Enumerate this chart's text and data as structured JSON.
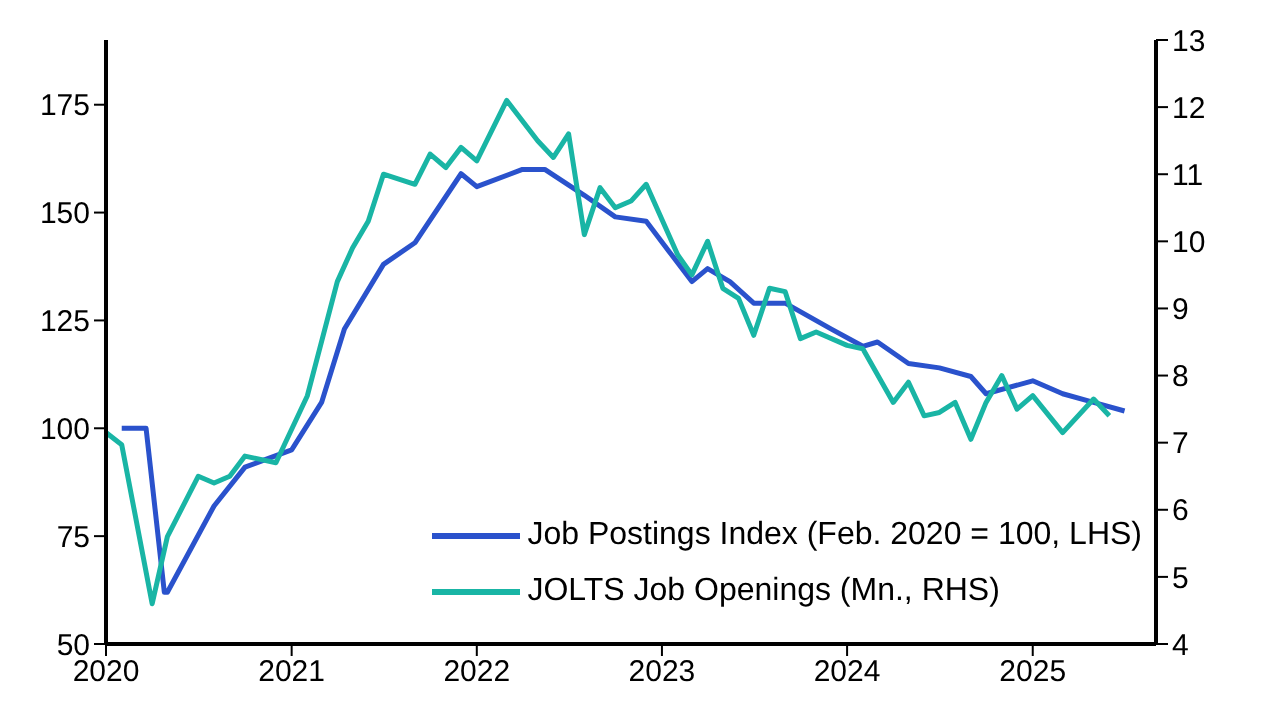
{
  "chart_data": {
    "type": "line",
    "xlim": [
      "2020-01",
      "2025-09"
    ],
    "xticks": [
      "2020",
      "2021",
      "2022",
      "2023",
      "2024",
      "2025"
    ],
    "ylim": [
      50,
      190
    ],
    "yticks": [
      50,
      75,
      100,
      125,
      150,
      175
    ],
    "y2lim": [
      4,
      13
    ],
    "y2ticks": [
      4,
      5,
      6,
      7,
      8,
      9,
      10,
      11,
      12,
      13
    ],
    "legend": "bottom right",
    "marker": "none",
    "line_style": "solid",
    "series": [
      {
        "name": "Job Postings Index (Feb. 2020 = 100, LHS)",
        "color": "#2a52cc",
        "axis": "y",
        "x": [
          "2020-02",
          "2020-03-20",
          "2020-04-25",
          "2020-05",
          "2020-08",
          "2020-10",
          "2021-01",
          "2021-03",
          "2021-04-15",
          "2021-07",
          "2021-09",
          "2021-12",
          "2022-01",
          "2022-04",
          "2022-05-15",
          "2022-08",
          "2022-10",
          "2022-12",
          "2023-01-15",
          "2023-03",
          "2023-04",
          "2023-05-15",
          "2023-07",
          "2023-09",
          "2023-12",
          "2024-02",
          "2024-03",
          "2024-05",
          "2024-07",
          "2024-09",
          "2024-10",
          "2025-01",
          "2025-03",
          "2025-05",
          "2025-07"
        ],
        "values": [
          100,
          100,
          62,
          62,
          82,
          91,
          95,
          106,
          123,
          138,
          143,
          159,
          156,
          160,
          160,
          154,
          149,
          148,
          141,
          134,
          137,
          134,
          129,
          129,
          123,
          119,
          120,
          115,
          114,
          112,
          108,
          111,
          108,
          106,
          104
        ]
      },
      {
        "name": "JOLTS Job Openings (Mn., RHS)",
        "color": "#19b5a5",
        "axis": "y2",
        "x": [
          "2020-01",
          "2020-02",
          "2020-04",
          "2020-05",
          "2020-07",
          "2020-08",
          "2020-09",
          "2020-10",
          "2020-12",
          "2021-02",
          "2021-04",
          "2021-05",
          "2021-06",
          "2021-07",
          "2021-09",
          "2021-10",
          "2021-11",
          "2021-12",
          "2022-01",
          "2022-03",
          "2022-05",
          "2022-06",
          "2022-07",
          "2022-08",
          "2022-09",
          "2022-10",
          "2022-11",
          "2022-12",
          "2023-02",
          "2023-03",
          "2023-04",
          "2023-05",
          "2023-06",
          "2023-07",
          "2023-08",
          "2023-09",
          "2023-10",
          "2023-11",
          "2024-01",
          "2024-02",
          "2024-04",
          "2024-05",
          "2024-06",
          "2024-07",
          "2024-08",
          "2024-09",
          "2024-10",
          "2024-11",
          "2024-12",
          "2025-01",
          "2025-03",
          "2025-05",
          "2025-06"
        ],
        "values": [
          7.15,
          6.97,
          4.6,
          5.6,
          6.5,
          6.4,
          6.5,
          6.8,
          6.7,
          7.7,
          9.4,
          9.9,
          10.3,
          11.0,
          10.85,
          11.3,
          11.1,
          11.4,
          11.2,
          12.1,
          11.5,
          11.25,
          11.6,
          10.1,
          10.8,
          10.5,
          10.6,
          10.85,
          9.8,
          9.5,
          10.0,
          9.3,
          9.15,
          8.6,
          9.3,
          9.25,
          8.55,
          8.65,
          8.45,
          8.4,
          7.6,
          7.9,
          7.4,
          7.45,
          7.6,
          7.05,
          7.6,
          8.0,
          7.5,
          7.7,
          7.15,
          7.65,
          7.4
        ]
      }
    ]
  }
}
